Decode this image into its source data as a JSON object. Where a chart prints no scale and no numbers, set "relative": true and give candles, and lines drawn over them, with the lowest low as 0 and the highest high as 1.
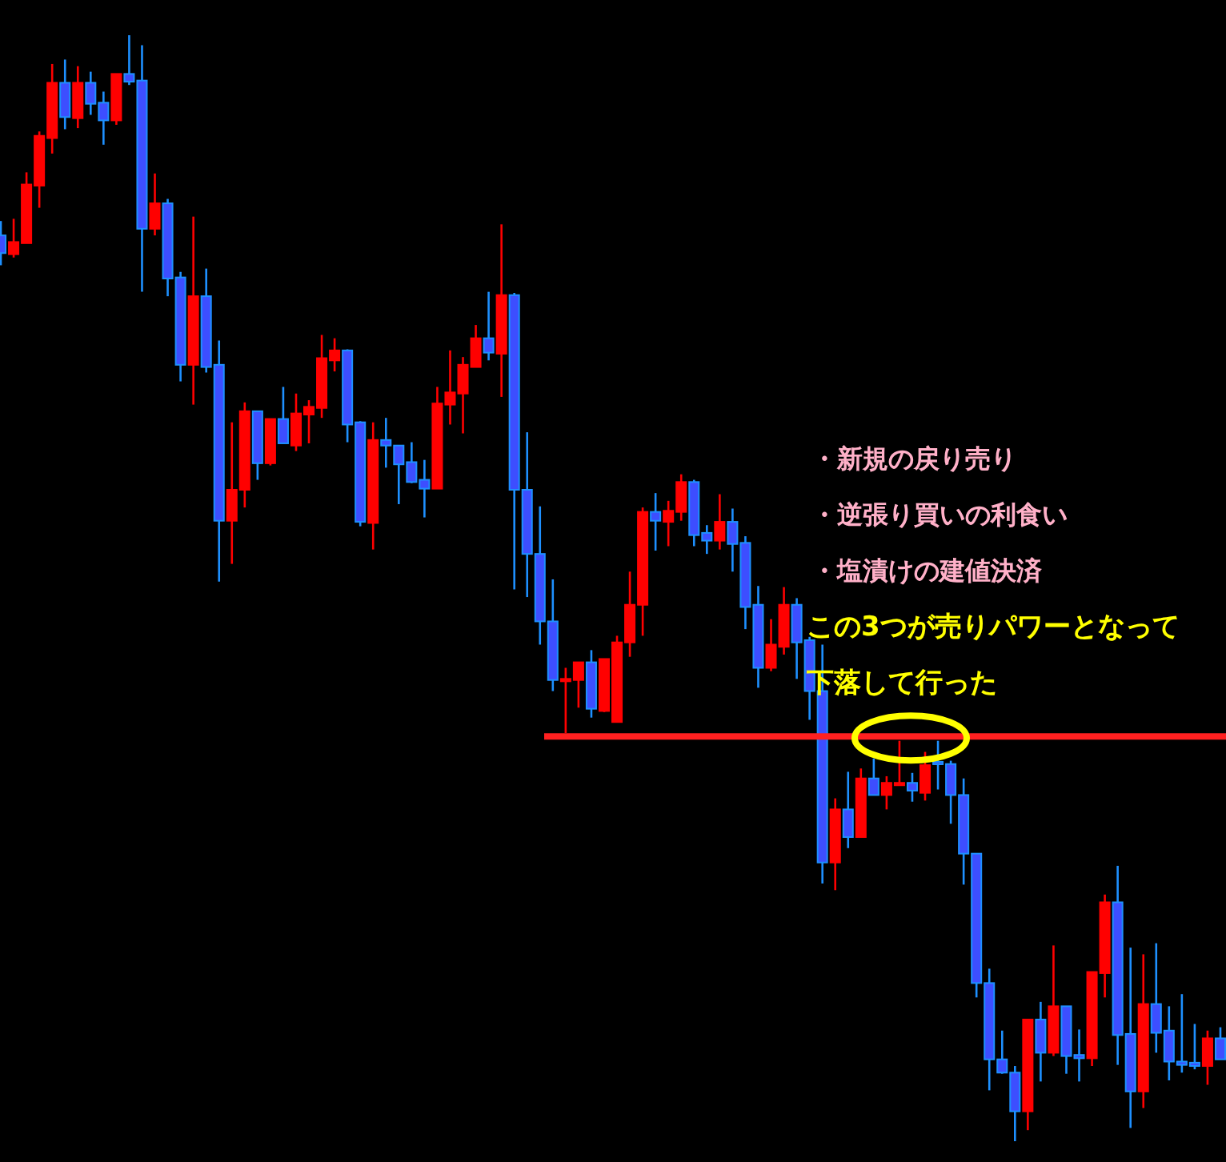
{
  "chart_data": {
    "type": "candlestick",
    "relative": true,
    "categories": [
      null,
      null,
      null,
      null,
      null,
      null,
      null,
      null,
      null,
      null,
      null,
      null,
      null,
      null,
      null,
      null,
      null,
      null,
      null,
      null,
      null,
      null,
      null,
      null,
      null,
      null,
      null,
      null,
      null,
      null,
      null,
      null,
      null,
      null,
      null,
      null,
      null,
      null,
      null,
      null,
      null,
      null,
      null,
      null,
      null,
      null,
      null,
      null,
      null,
      null,
      null,
      null,
      null,
      null,
      null,
      null,
      null,
      null,
      null,
      null,
      null,
      null,
      null,
      null,
      null,
      null,
      null,
      null,
      null,
      null,
      null,
      null,
      null,
      null,
      null,
      null,
      null,
      null,
      null,
      null,
      null,
      null,
      null,
      null,
      null,
      null,
      null,
      null,
      null,
      null,
      null,
      null,
      null,
      null,
      null,
      null
    ],
    "ohlc": [
      [
        0.819,
        0.832,
        0.792,
        0.803
      ],
      [
        0.802,
        0.834,
        0.799,
        0.813
      ],
      [
        0.812,
        0.876,
        0.812,
        0.865
      ],
      [
        0.864,
        0.913,
        0.844,
        0.909
      ],
      [
        0.907,
        0.974,
        0.893,
        0.957
      ],
      [
        0.957,
        0.978,
        0.915,
        0.926
      ],
      [
        0.925,
        0.972,
        0.916,
        0.957
      ],
      [
        0.957,
        0.967,
        0.928,
        0.938
      ],
      [
        0.939,
        0.949,
        0.901,
        0.923
      ],
      [
        0.923,
        0.965,
        0.919,
        0.965
      ],
      [
        0.965,
        1,
        0.955,
        0.958
      ],
      [
        0.959,
        0.991,
        0.768,
        0.825
      ],
      [
        0.825,
        0.875,
        0.819,
        0.848
      ],
      [
        0.848,
        0.852,
        0.764,
        0.78
      ],
      [
        0.781,
        0.786,
        0.687,
        0.702
      ],
      [
        0.702,
        0.836,
        0.666,
        0.764
      ],
      [
        0.764,
        0.789,
        0.695,
        0.7
      ],
      [
        0.702,
        0.724,
        0.506,
        0.561
      ],
      [
        0.561,
        0.65,
        0.522,
        0.589
      ],
      [
        0.589,
        0.668,
        0.573,
        0.66
      ],
      [
        0.66,
        0.66,
        0.598,
        0.613
      ],
      [
        0.613,
        0.653,
        0.611,
        0.653
      ],
      [
        0.653,
        0.682,
        0.631,
        0.631
      ],
      [
        0.629,
        0.676,
        0.624,
        0.658
      ],
      [
        0.657,
        0.67,
        0.631,
        0.664
      ],
      [
        0.663,
        0.729,
        0.654,
        0.708
      ],
      [
        0.706,
        0.726,
        0.696,
        0.715
      ],
      [
        0.715,
        0.716,
        0.632,
        0.648
      ],
      [
        0.65,
        0.651,
        0.556,
        0.56
      ],
      [
        0.559,
        0.65,
        0.535,
        0.634
      ],
      [
        0.634,
        0.654,
        0.609,
        0.629
      ],
      [
        0.629,
        0.629,
        0.576,
        0.612
      ],
      [
        0.614,
        0.632,
        0.595,
        0.596
      ],
      [
        0.598,
        0.616,
        0.564,
        0.59
      ],
      [
        0.59,
        0.682,
        0.59,
        0.667
      ],
      [
        0.666,
        0.715,
        0.648,
        0.677
      ],
      [
        0.676,
        0.709,
        0.64,
        0.702
      ],
      [
        0.7,
        0.738,
        0.7,
        0.726
      ],
      [
        0.726,
        0.768,
        0.706,
        0.713
      ],
      [
        0.712,
        0.829,
        0.673,
        0.765
      ],
      [
        0.765,
        0.767,
        0.499,
        0.589
      ],
      [
        0.589,
        0.641,
        0.492,
        0.531
      ],
      [
        0.531,
        0.574,
        0.449,
        0.47
      ],
      [
        0.47,
        0.508,
        0.407,
        0.417
      ],
      [
        0.417,
        0.428,
        0.369,
        0.418
      ],
      [
        0.417,
        0.433,
        0.392,
        0.433
      ],
      [
        0.433,
        0.444,
        0.383,
        0.391
      ],
      [
        0.389,
        0.436,
        0.388,
        0.436
      ],
      [
        0.379,
        0.457,
        0.379,
        0.451
      ],
      [
        0.451,
        0.515,
        0.438,
        0.485
      ],
      [
        0.485,
        0.573,
        0.457,
        0.569
      ],
      [
        0.569,
        0.586,
        0.534,
        0.561
      ],
      [
        0.56,
        0.579,
        0.538,
        0.57
      ],
      [
        0.569,
        0.603,
        0.561,
        0.596
      ],
      [
        0.596,
        0.598,
        0.538,
        0.548
      ],
      [
        0.55,
        0.557,
        0.531,
        0.543
      ],
      [
        0.543,
        0.585,
        0.535,
        0.56
      ],
      [
        0.56,
        0.572,
        0.515,
        0.54
      ],
      [
        0.541,
        0.547,
        0.463,
        0.483
      ],
      [
        0.485,
        0.502,
        0.41,
        0.428
      ],
      [
        0.428,
        0.472,
        0.425,
        0.449
      ],
      [
        0.447,
        0.501,
        0.44,
        0.485
      ],
      [
        0.485,
        0.491,
        0.418,
        0.451
      ],
      [
        0.453,
        0.456,
        0.381,
        0.407
      ],
      [
        0.407,
        0.449,
        0.233,
        0.252
      ],
      [
        0.252,
        0.31,
        0.227,
        0.3
      ],
      [
        0.3,
        0.334,
        0.265,
        0.275
      ],
      [
        0.275,
        0.337,
        0.275,
        0.328
      ],
      [
        0.328,
        0.346,
        0.313,
        0.313
      ],
      [
        0.313,
        0.33,
        0.3,
        0.324
      ],
      [
        0.323,
        0.362,
        0.323,
        0.324
      ],
      [
        0.324,
        0.333,
        0.307,
        0.317
      ],
      [
        0.315,
        0.352,
        0.308,
        0.34
      ],
      [
        0.343,
        0.362,
        0.318,
        0.341
      ],
      [
        0.341,
        0.344,
        0.287,
        0.313
      ],
      [
        0.313,
        0.328,
        0.232,
        0.26
      ],
      [
        0.26,
        0.26,
        0.13,
        0.143
      ],
      [
        0.143,
        0.156,
        0.046,
        0.074
      ],
      [
        0.074,
        0.1,
        0.061,
        0.062
      ],
      [
        0.062,
        0.068,
        0,
        0.027
      ],
      [
        0.027,
        0.11,
        0.01,
        0.11
      ],
      [
        0.11,
        0.126,
        0.054,
        0.08
      ],
      [
        0.08,
        0.177,
        0.077,
        0.122
      ],
      [
        0.122,
        0.122,
        0.061,
        0.077
      ],
      [
        0.078,
        0.101,
        0.054,
        0.075
      ],
      [
        0.075,
        0.153,
        0.068,
        0.153
      ],
      [
        0.152,
        0.223,
        0.13,
        0.216
      ],
      [
        0.216,
        0.249,
        0.069,
        0.096
      ],
      [
        0.097,
        0.175,
        0.012,
        0.045
      ],
      [
        0.045,
        0.169,
        0.03,
        0.124
      ],
      [
        0.124,
        0.179,
        0.08,
        0.098
      ],
      [
        0.1,
        0.122,
        0.055,
        0.072
      ],
      [
        0.072,
        0.133,
        0.062,
        0.069
      ],
      [
        0.071,
        0.106,
        0.065,
        0.068
      ],
      [
        0.068,
        0.1,
        0.051,
        0.093
      ],
      [
        0.093,
        0.103,
        0.074,
        0.074
      ]
    ],
    "colors": [
      "#3d4eff",
      "#ff0000",
      "#ff0000",
      "#ff0000",
      "#ff0000",
      "#3d4eff",
      "#ff0000",
      "#3d4eff",
      "#3d4eff",
      "#ff0000",
      "#3d4eff",
      "#3d4eff",
      "#ff0000",
      "#3d4eff",
      "#3d4eff",
      "#ff0000",
      "#3d4eff",
      "#3d4eff",
      "#ff0000",
      "#ff0000",
      "#3d4eff",
      "#ff0000",
      "#3d4eff",
      "#ff0000",
      "#ff0000",
      "#ff0000",
      "#ff0000",
      "#3d4eff",
      "#3d4eff",
      "#ff0000",
      "#3d4eff",
      "#3d4eff",
      "#3d4eff",
      "#3d4eff",
      "#ff0000",
      "#ff0000",
      "#ff0000",
      "#ff0000",
      "#3d4eff",
      "#ff0000",
      "#3d4eff",
      "#3d4eff",
      "#3d4eff",
      "#3d4eff",
      "#ff0000",
      "#ff0000",
      "#3d4eff",
      "#ff0000",
      "#ff0000",
      "#ff0000",
      "#ff0000",
      "#3d4eff",
      "#ff0000",
      "#ff0000",
      "#3d4eff",
      "#3d4eff",
      "#ff0000",
      "#3d4eff",
      "#3d4eff",
      "#3d4eff",
      "#ff0000",
      "#ff0000",
      "#3d4eff",
      "#3d4eff",
      "#3d4eff",
      "#ff0000",
      "#3d4eff",
      "#ff0000",
      "#3d4eff",
      "#ff0000",
      "#ff0000",
      "#3d4eff",
      "#ff0000",
      "#3d4eff",
      "#3d4eff",
      "#3d4eff",
      "#3d4eff",
      "#3d4eff",
      "#3d4eff",
      "#3d4eff",
      "#ff0000",
      "#3d4eff",
      "#ff0000",
      "#3d4eff",
      "#3d4eff",
      "#ff0000",
      "#ff0000",
      "#3d4eff",
      "#3d4eff",
      "#ff0000",
      "#3d4eff",
      "#3d4eff",
      "#3d4eff",
      "#3d4eff",
      "#ff0000",
      "#3d4eff"
    ],
    "ref_lines": [
      {
        "axis": "y",
        "value": 0.366,
        "color": "#ff2020"
      }
    ],
    "annotations": [
      "・新規の戻り売り",
      "・逆張り買いの利食い",
      "・塩漬けの建値決済",
      "この3つが売りパワーとなって",
      "下落して行った"
    ]
  }
}
